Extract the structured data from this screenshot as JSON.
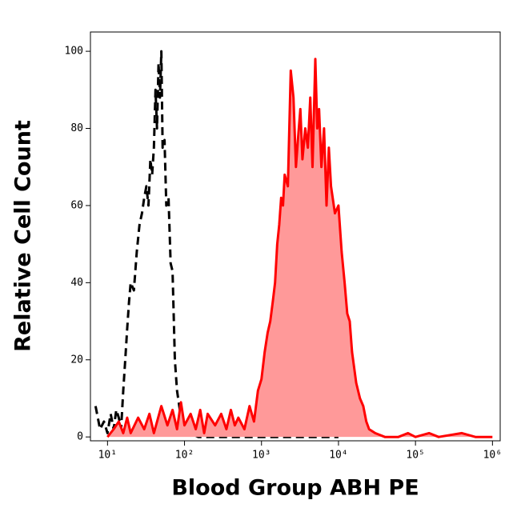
{
  "chart_data": {
    "type": "histogram-overlay",
    "x_label": "Blood Group ABH PE",
    "y_label": "Relative Cell Count",
    "log_x": true,
    "xlim": [
      6,
      1260000
    ],
    "ylim": [
      -1,
      105
    ],
    "xticks": [
      {
        "value": 10,
        "label": "10¹"
      },
      {
        "value": 100,
        "label": "10²"
      },
      {
        "value": 1000,
        "label": "10³"
      },
      {
        "value": 10000,
        "label": "10⁴"
      },
      {
        "value": 100000,
        "label": "10⁵"
      },
      {
        "value": 1000000,
        "label": "10⁶"
      }
    ],
    "yticks": [
      0,
      20,
      40,
      60,
      80,
      100
    ],
    "series": [
      {
        "color": "#000000",
        "dashed": true,
        "filled": false,
        "x": [
          7,
          8,
          9,
          10,
          11,
          12,
          13,
          14,
          15,
          16,
          17,
          18,
          19,
          20,
          22,
          24,
          26,
          28,
          30,
          32,
          34,
          36,
          38,
          40,
          42,
          44,
          46,
          48,
          50,
          52,
          55,
          58,
          62,
          66,
          70,
          75,
          80,
          90,
          100,
          120,
          150,
          200,
          300,
          500,
          1000,
          3000,
          10000
        ],
        "values": [
          8,
          2,
          4,
          1,
          6,
          2,
          7,
          5,
          2,
          12,
          20,
          28,
          35,
          40,
          38,
          48,
          55,
          58,
          62,
          65,
          60,
          72,
          68,
          75,
          90,
          80,
          97,
          88,
          100,
          75,
          77,
          60,
          62,
          45,
          43,
          20,
          12,
          5,
          2,
          1,
          0,
          0,
          0,
          0,
          0,
          0,
          0
        ]
      },
      {
        "color": "#ff0000",
        "fill": "#ff9999",
        "dashed": false,
        "filled": true,
        "x": [
          10,
          12,
          14,
          16,
          18,
          20,
          25,
          30,
          35,
          40,
          50,
          60,
          70,
          80,
          90,
          100,
          120,
          140,
          160,
          180,
          200,
          250,
          300,
          350,
          400,
          450,
          500,
          600,
          700,
          800,
          900,
          1000,
          1100,
          1200,
          1300,
          1400,
          1500,
          1600,
          1700,
          1800,
          1900,
          2000,
          2200,
          2400,
          2600,
          2800,
          3000,
          3200,
          3400,
          3700,
          4000,
          4300,
          4600,
          5000,
          5300,
          5600,
          6000,
          6500,
          7000,
          7500,
          8000,
          9000,
          10000,
          11000,
          12000,
          13000,
          14000,
          15000,
          17000,
          19000,
          21000,
          23000,
          25000,
          30000,
          40000,
          60000,
          80000,
          100000,
          150000,
          200000,
          400000,
          600000,
          1000000
        ],
        "values": [
          0,
          2,
          4,
          1,
          5,
          1,
          5,
          2,
          6,
          1,
          8,
          3,
          7,
          2,
          9,
          3,
          6,
          2,
          7,
          1,
          6,
          3,
          6,
          2,
          7,
          3,
          5,
          2,
          8,
          4,
          12,
          15,
          22,
          27,
          30,
          35,
          40,
          50,
          55,
          62,
          60,
          68,
          65,
          95,
          88,
          70,
          78,
          85,
          72,
          80,
          75,
          88,
          70,
          98,
          80,
          85,
          70,
          80,
          60,
          75,
          65,
          58,
          60,
          48,
          40,
          32,
          30,
          22,
          14,
          10,
          8,
          4,
          2,
          1,
          0,
          0,
          1,
          0,
          1,
          0,
          1,
          0,
          0
        ]
      }
    ]
  }
}
